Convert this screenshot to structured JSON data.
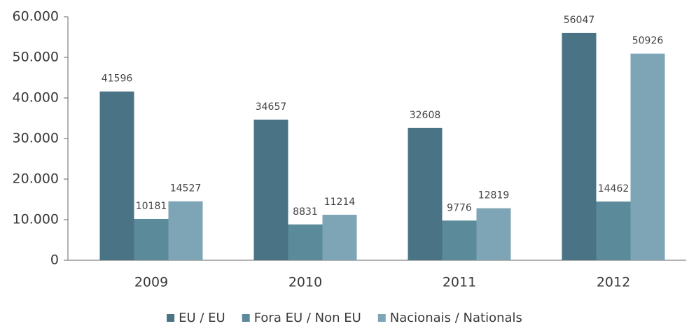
{
  "chart_data": {
    "type": "bar",
    "categories": [
      "2009",
      "2010",
      "2011",
      "2012"
    ],
    "series": [
      {
        "name": "EU / EU",
        "color": "#4a7385",
        "values": [
          41596,
          34657,
          32608,
          56047
        ]
      },
      {
        "name": "Fora EU / Non EU",
        "color": "#5b8a9b",
        "values": [
          10181,
          8831,
          9776,
          14462
        ]
      },
      {
        "name": "Nacionais  / Nationals",
        "color": "#7ea5b5",
        "values": [
          14527,
          11214,
          12819,
          50926
        ]
      }
    ],
    "ylim": [
      0,
      60000
    ],
    "yticks": [
      0,
      {
        "value": 10000,
        "label": "10.000"
      },
      {
        "value": 20000,
        "label": "20.000"
      },
      {
        "value": 30000,
        "label": "30.000"
      },
      {
        "value": 40000,
        "label": "40.000"
      },
      {
        "value": 50000,
        "label": "50.000"
      },
      {
        "value": 60000,
        "label": "60.000"
      }
    ],
    "grid": false,
    "legend": "bottom"
  }
}
